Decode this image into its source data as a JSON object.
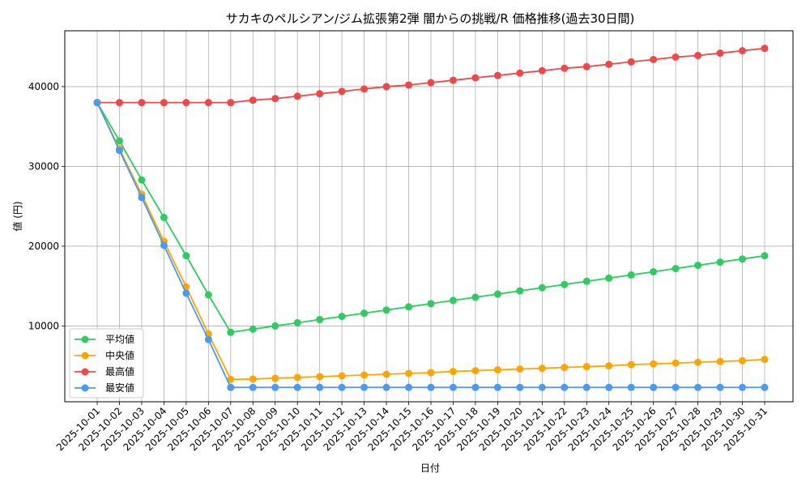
{
  "chart_data": {
    "type": "line",
    "title": "サカキのペルシアン/ジム拡張第2弾 闇からの挑戦/R 価格推移(過去30日間)",
    "xlabel": "日付",
    "ylabel": "値 (円)",
    "ylim": [
      500,
      47000
    ],
    "yticks": [
      10000,
      20000,
      30000,
      40000
    ],
    "grid": true,
    "legend_position": "lower-left",
    "categories": [
      "2025-10-01",
      "2025-10-02",
      "2025-10-03",
      "2025-10-04",
      "2025-10-05",
      "2025-10-06",
      "2025-10-07",
      "2025-10-08",
      "2025-10-09",
      "2025-10-10",
      "2025-10-11",
      "2025-10-12",
      "2025-10-13",
      "2025-10-14",
      "2025-10-15",
      "2025-10-16",
      "2025-10-17",
      "2025-10-18",
      "2025-10-19",
      "2025-10-20",
      "2025-10-21",
      "2025-10-22",
      "2025-10-23",
      "2025-10-24",
      "2025-10-25",
      "2025-10-26",
      "2025-10-27",
      "2025-10-28",
      "2025-10-29",
      "2025-10-30",
      "2025-10-31"
    ],
    "series": [
      {
        "name": "平均値",
        "color": "#2ecc5f",
        "values": [
          38000,
          33200,
          28300,
          23600,
          18800,
          13900,
          9200,
          9600,
          10000,
          10400,
          10800,
          11200,
          11600,
          12000,
          12400,
          12800,
          13200,
          13600,
          14000,
          14400,
          14800,
          15200,
          15600,
          16000,
          16400,
          16800,
          17200,
          17600,
          18000,
          18400,
          18800
        ]
      },
      {
        "name": "中央値",
        "color": "#ffa500",
        "values": [
          38000,
          32200,
          26500,
          20600,
          14900,
          9000,
          3300,
          3350,
          3450,
          3550,
          3650,
          3750,
          3850,
          3950,
          4050,
          4150,
          4300,
          4400,
          4500,
          4600,
          4700,
          4800,
          4900,
          5000,
          5150,
          5250,
          5350,
          5450,
          5550,
          5650,
          5800
        ]
      },
      {
        "name": "最高値",
        "color": "#f04848",
        "values": [
          38000,
          38000,
          38000,
          38000,
          38000,
          38000,
          38000,
          38300,
          38500,
          38800,
          39100,
          39400,
          39700,
          40000,
          40200,
          40500,
          40800,
          41100,
          41400,
          41700,
          42000,
          42300,
          42500,
          42800,
          43100,
          43400,
          43700,
          43900,
          44200,
          44500,
          44800
        ]
      },
      {
        "name": "最安値",
        "color": "#4a9af0",
        "values": [
          38000,
          32000,
          26100,
          20100,
          14100,
          8300,
          2300,
          2300,
          2300,
          2300,
          2300,
          2300,
          2300,
          2300,
          2300,
          2300,
          2300,
          2300,
          2300,
          2300,
          2300,
          2300,
          2300,
          2300,
          2300,
          2300,
          2300,
          2300,
          2300,
          2300,
          2300
        ]
      }
    ]
  }
}
